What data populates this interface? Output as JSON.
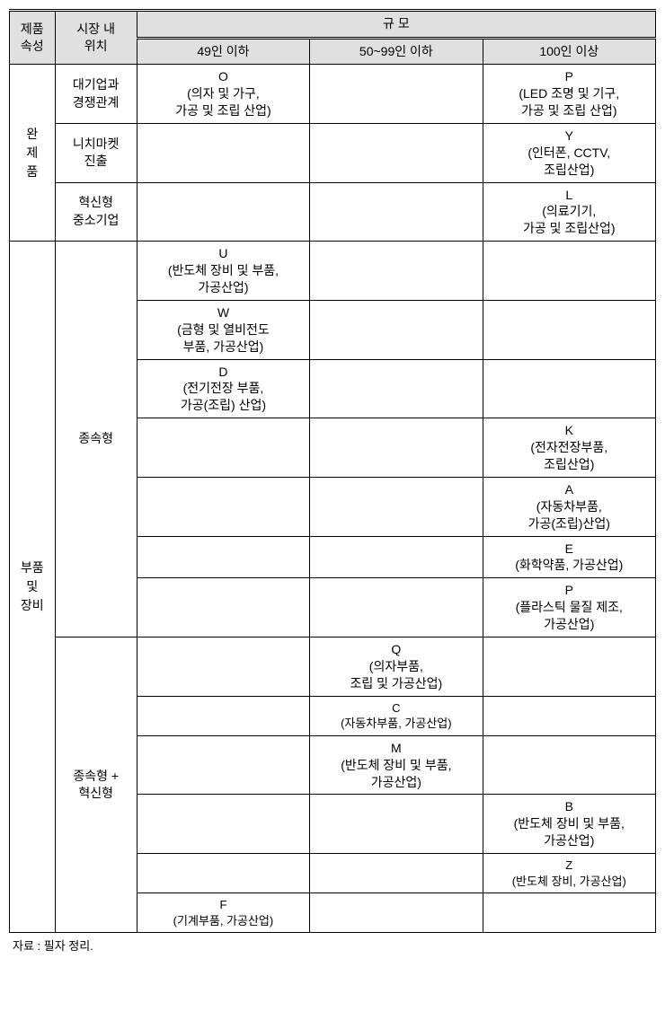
{
  "headers": {
    "product_attr": "제품\n속성",
    "market_pos": "시장 내\n위치",
    "scale": "규 모",
    "scale_49": "49인 이하",
    "scale_50_99": "50~99인 이하",
    "scale_100": "100인 이상"
  },
  "row_groups": {
    "finished": "완\n제\n품",
    "parts": "부품\n및\n장비"
  },
  "market_types": {
    "large_comp": "대기업과\n경쟁관계",
    "niche": "니치마켓\n진출",
    "innov_sme": "혁신형\n중소기업",
    "dependent": "종속형",
    "dep_innov": "종속형 +\n혁신형"
  },
  "cells": {
    "r1c1": "O\n(의자 및 가구,\n가공 및 조립 산업)",
    "r1c3": "P\n(LED 조명 및 기구,\n가공 및 조립 산업)",
    "r2c3": "Y\n(인터폰, CCTV,\n조립산업)",
    "r3c3": "L\n(의료기기,\n가공 및 조립산업)",
    "r4c1": "U\n(반도체 장비 및 부품,\n가공산업)",
    "r5c1": "W\n(금형 및 열비전도\n부품, 가공산업)",
    "r6c1": "D\n(전기전장 부품,\n가공(조립) 산업)",
    "r7c3": "K\n(전자전장부품,\n조립산업)",
    "r8c3": "A\n(자동차부품,\n가공(조립)산업)",
    "r9c3": "E\n(화학약품, 가공산업)",
    "r10c3": "P\n(플라스틱 물질 제조,\n가공산업)",
    "r11c2": "Q\n(의자부품,\n조립 및 가공산업)",
    "r12c2": "C\n(자동차부품, 가공산업)",
    "r13c2": "M\n(반도체 장비 및 부품,\n가공산업)",
    "r14c3": "B\n(반도체 장비 및 부품,\n가공산업)",
    "r15c3": "Z\n(반도체 장비, 가공산업)",
    "r16c1": "F\n(기계부품, 가공산업)"
  },
  "source": "자료 : 필자 정리."
}
